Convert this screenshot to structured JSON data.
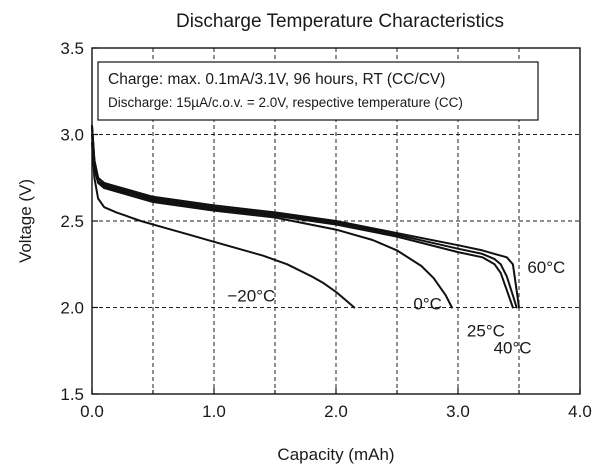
{
  "chart_data": {
    "type": "line",
    "title": "Discharge Temperature Characteristics",
    "xlabel": "Capacity (mAh)",
    "ylabel": "Voltage (V)",
    "xlim": [
      0,
      4
    ],
    "ylim": [
      1.5,
      3.5
    ],
    "x_ticks": [
      "0.0",
      "1.0",
      "2.0",
      "3.0",
      "4.0"
    ],
    "y_ticks": [
      "1.5",
      "2.0",
      "2.5",
      "3.0",
      "3.5"
    ],
    "grid": true,
    "annotation": [
      "Charge: max. 0.1mA/3.1V, 96 hours, RT (CC/CV)",
      "Discharge: 15µA/c.o.v. = 2.0V, respective temperature (CC)"
    ],
    "series": [
      {
        "name": "60°C",
        "x": [
          0,
          0.02,
          0.05,
          0.1,
          0.2,
          0.5,
          1.0,
          1.5,
          2.0,
          2.5,
          3.0,
          3.2,
          3.3,
          3.4,
          3.45,
          3.48,
          3.5
        ],
        "y": [
          3.05,
          2.85,
          2.75,
          2.72,
          2.7,
          2.64,
          2.59,
          2.55,
          2.5,
          2.43,
          2.36,
          2.33,
          2.31,
          2.29,
          2.25,
          2.1,
          2.0
        ]
      },
      {
        "name": "40°C",
        "x": [
          0,
          0.02,
          0.05,
          0.1,
          0.2,
          0.5,
          1.0,
          1.5,
          2.0,
          2.5,
          3.0,
          3.2,
          3.3,
          3.35,
          3.4,
          3.45,
          3.48
        ],
        "y": [
          3.05,
          2.85,
          2.75,
          2.71,
          2.69,
          2.63,
          2.58,
          2.54,
          2.49,
          2.42,
          2.34,
          2.31,
          2.28,
          2.25,
          2.18,
          2.07,
          2.0
        ]
      },
      {
        "name": "25°C",
        "x": [
          0,
          0.02,
          0.05,
          0.1,
          0.2,
          0.5,
          1.0,
          1.5,
          2.0,
          2.5,
          3.0,
          3.2,
          3.3,
          3.35,
          3.4,
          3.45
        ],
        "y": [
          3.05,
          2.83,
          2.73,
          2.7,
          2.68,
          2.62,
          2.57,
          2.53,
          2.48,
          2.41,
          2.32,
          2.29,
          2.25,
          2.2,
          2.1,
          2.0
        ]
      },
      {
        "name": "0°C",
        "x": [
          0,
          0.02,
          0.05,
          0.1,
          0.2,
          0.5,
          1.0,
          1.5,
          2.0,
          2.3,
          2.5,
          2.7,
          2.8,
          2.9,
          2.95
        ],
        "y": [
          3.0,
          2.8,
          2.72,
          2.69,
          2.67,
          2.61,
          2.56,
          2.52,
          2.45,
          2.39,
          2.33,
          2.24,
          2.17,
          2.07,
          2.0
        ]
      },
      {
        "name": "−20°C",
        "x": [
          0,
          0.02,
          0.05,
          0.1,
          0.2,
          0.4,
          0.6,
          0.8,
          1.0,
          1.2,
          1.4,
          1.6,
          1.8,
          1.9,
          2.0,
          2.1,
          2.15
        ],
        "y": [
          2.95,
          2.75,
          2.63,
          2.58,
          2.55,
          2.5,
          2.46,
          2.42,
          2.38,
          2.34,
          2.3,
          2.25,
          2.18,
          2.14,
          2.09,
          2.03,
          2.0
        ]
      }
    ]
  }
}
